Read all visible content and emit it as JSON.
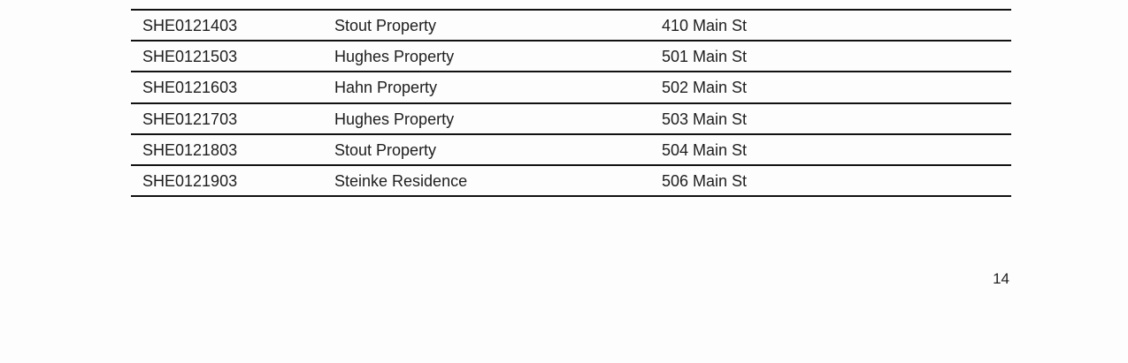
{
  "table": {
    "rows": [
      [
        "SHE0121403",
        "Stout Property",
        "410 Main St"
      ],
      [
        "SHE0121503",
        "Hughes Property",
        "501 Main St"
      ],
      [
        "SHE0121603",
        "Hahn Property",
        "502 Main St"
      ],
      [
        "SHE0121703",
        "Hughes Property",
        "503 Main St"
      ],
      [
        "SHE0121803",
        "Stout Property",
        "504 Main St"
      ],
      [
        "SHE0121903",
        "Steinke Residence",
        "506 Main St"
      ]
    ]
  },
  "footer": {
    "page_number": "14"
  }
}
